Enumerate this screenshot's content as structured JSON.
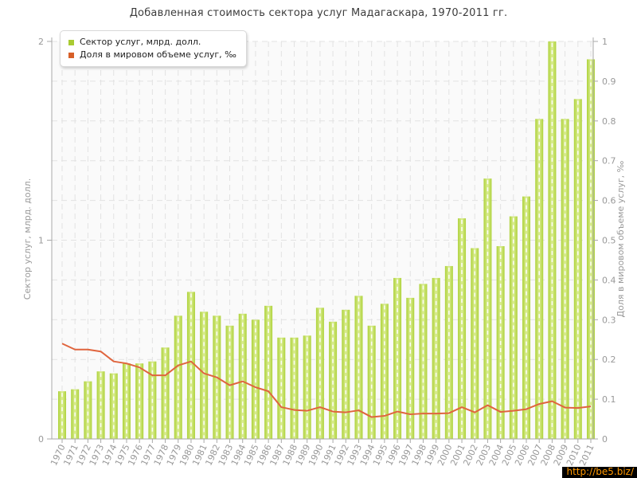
{
  "page": {
    "watermark": "http://be5.biz/"
  },
  "chart_data": {
    "type": "bar",
    "title": "Добавленная стоимость сектора услуг Мадагаскара, 1970-2011 гг.",
    "categories": [
      "1970",
      "1971",
      "1972",
      "1973",
      "1974",
      "1975",
      "1976",
      "1977",
      "1978",
      "1979",
      "1980",
      "1981",
      "1982",
      "1983",
      "1984",
      "1985",
      "1986",
      "1987",
      "1988",
      "1989",
      "1990",
      "1991",
      "1992",
      "1993",
      "1994",
      "1995",
      "1996",
      "1997",
      "1998",
      "1999",
      "2000",
      "2001",
      "2002",
      "2003",
      "2004",
      "2005",
      "2006",
      "2007",
      "2008",
      "2009",
      "2010",
      "2011"
    ],
    "series": [
      {
        "name": "Сектор услуг, млрд. долл.",
        "type": "bar",
        "axis": "left",
        "color": "#b9d944",
        "gradient": {
          "edge": "#aed23a",
          "center": "#dcee96"
        },
        "legend_color": "#a9cb32",
        "values": [
          0.24,
          0.25,
          0.29,
          0.34,
          0.33,
          0.38,
          0.38,
          0.39,
          0.46,
          0.62,
          0.74,
          0.64,
          0.62,
          0.57,
          0.63,
          0.6,
          0.67,
          0.51,
          0.51,
          0.52,
          0.66,
          0.59,
          0.65,
          0.72,
          0.57,
          0.68,
          0.81,
          0.71,
          0.78,
          0.81,
          0.87,
          1.11,
          0.96,
          1.31,
          0.97,
          1.12,
          1.22,
          1.61,
          2.0,
          1.61,
          1.71,
          1.91
        ]
      },
      {
        "name": "Доля в мировом объеме услуг, ‰",
        "type": "line",
        "axis": "right",
        "color": "#e0653e",
        "legend_color": "#d75f28",
        "values": [
          0.24,
          0.225,
          0.225,
          0.22,
          0.195,
          0.19,
          0.18,
          0.16,
          0.16,
          0.185,
          0.195,
          0.165,
          0.155,
          0.135,
          0.145,
          0.13,
          0.12,
          0.08,
          0.073,
          0.071,
          0.08,
          0.069,
          0.067,
          0.072,
          0.055,
          0.058,
          0.069,
          0.062,
          0.064,
          0.064,
          0.065,
          0.08,
          0.067,
          0.085,
          0.068,
          0.071,
          0.075,
          0.088,
          0.095,
          0.079,
          0.078,
          0.082
        ]
      }
    ],
    "axes": {
      "left": {
        "label": "Сектор услуг, млрд. долл.",
        "min": 0,
        "max": 2,
        "ticks": [
          0,
          1,
          2
        ]
      },
      "right": {
        "label": "Доля в мировом объеме услуг, ‰",
        "min": 0,
        "max": 1,
        "tick_step": 0.1
      }
    },
    "legend_position": "top-left",
    "grid": "dashed",
    "styles": {
      "plot_bg": "#fafafa",
      "gridline": "#e2e2e2",
      "axis_line": "#a8a8a8",
      "tick_text": "#999999",
      "bar_dash": "#ffffff"
    }
  }
}
